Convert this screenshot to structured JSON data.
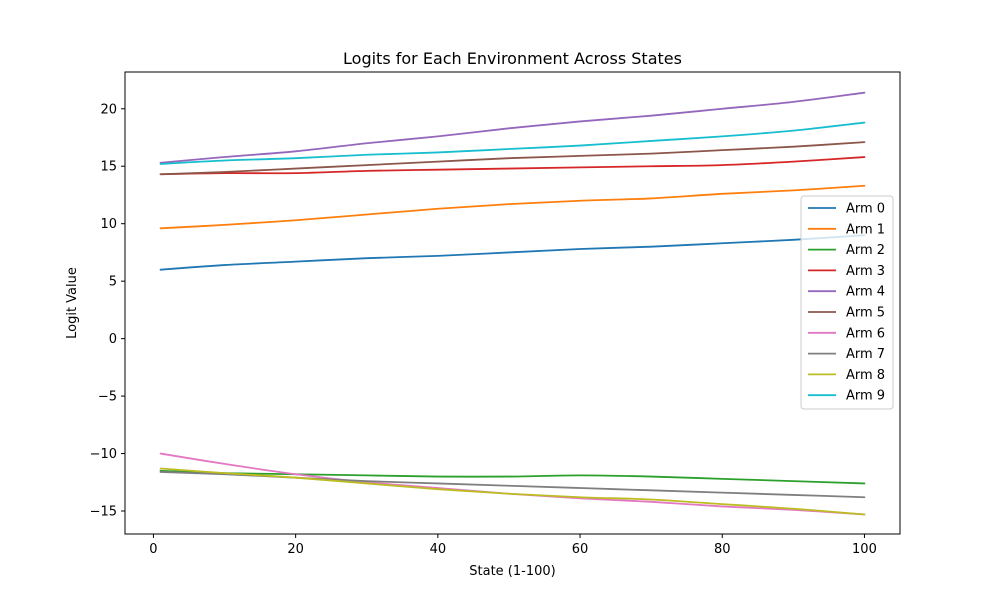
{
  "chart_data": {
    "type": "line",
    "title": "Logits for Each Environment Across States",
    "xlabel": "State (1-100)",
    "ylabel": "Logit Value",
    "xlim": [
      -4,
      105
    ],
    "ylim": [
      -17,
      23.2
    ],
    "xticks": [
      0,
      20,
      40,
      60,
      80,
      100
    ],
    "yticks": [
      -15,
      -10,
      -5,
      0,
      5,
      10,
      15,
      20
    ],
    "tick_labels_x": [
      "0",
      "20",
      "40",
      "60",
      "80",
      "100"
    ],
    "tick_labels_y": [
      "−15",
      "−10",
      "−5",
      "0",
      "5",
      "10",
      "15",
      "20"
    ],
    "grid": false,
    "legend_position": "center-right",
    "x": [
      1,
      10,
      20,
      30,
      40,
      50,
      60,
      70,
      80,
      90,
      100
    ],
    "series": [
      {
        "name": "Arm 0",
        "color": "#1f77b4",
        "values": [
          6.0,
          6.4,
          6.7,
          7.0,
          7.2,
          7.5,
          7.8,
          8.0,
          8.3,
          8.6,
          9.0
        ]
      },
      {
        "name": "Arm 1",
        "color": "#ff7f0e",
        "values": [
          9.6,
          9.9,
          10.3,
          10.8,
          11.3,
          11.7,
          12.0,
          12.2,
          12.6,
          12.9,
          13.3
        ]
      },
      {
        "name": "Arm 2",
        "color": "#2ca02c",
        "values": [
          -11.5,
          -11.7,
          -11.8,
          -11.9,
          -12.0,
          -12.0,
          -11.9,
          -12.0,
          -12.2,
          -12.4,
          -12.6
        ]
      },
      {
        "name": "Arm 3",
        "color": "#d62728",
        "values": [
          14.3,
          14.4,
          14.4,
          14.6,
          14.7,
          14.8,
          14.9,
          15.0,
          15.1,
          15.4,
          15.8
        ]
      },
      {
        "name": "Arm 4",
        "color": "#9467bd",
        "values": [
          15.3,
          15.8,
          16.3,
          17.0,
          17.6,
          18.3,
          18.9,
          19.4,
          20.0,
          20.6,
          21.4
        ]
      },
      {
        "name": "Arm 5",
        "color": "#8c564b",
        "values": [
          14.3,
          14.5,
          14.8,
          15.1,
          15.4,
          15.7,
          15.9,
          16.1,
          16.4,
          16.7,
          17.1
        ]
      },
      {
        "name": "Arm 6",
        "color": "#e377c2",
        "values": [
          -10.0,
          -10.9,
          -11.8,
          -12.5,
          -13.0,
          -13.5,
          -13.9,
          -14.2,
          -14.6,
          -14.9,
          -15.3
        ]
      },
      {
        "name": "Arm 7",
        "color": "#7f7f7f",
        "values": [
          -11.6,
          -11.8,
          -12.1,
          -12.4,
          -12.6,
          -12.8,
          -13.0,
          -13.2,
          -13.4,
          -13.6,
          -13.8
        ]
      },
      {
        "name": "Arm 8",
        "color": "#bcbd22",
        "values": [
          -11.3,
          -11.7,
          -12.1,
          -12.6,
          -13.1,
          -13.5,
          -13.8,
          -14.0,
          -14.4,
          -14.8,
          -15.3
        ]
      },
      {
        "name": "Arm 9",
        "color": "#17becf",
        "values": [
          15.2,
          15.5,
          15.7,
          16.0,
          16.2,
          16.5,
          16.8,
          17.2,
          17.6,
          18.1,
          18.8
        ]
      }
    ]
  }
}
